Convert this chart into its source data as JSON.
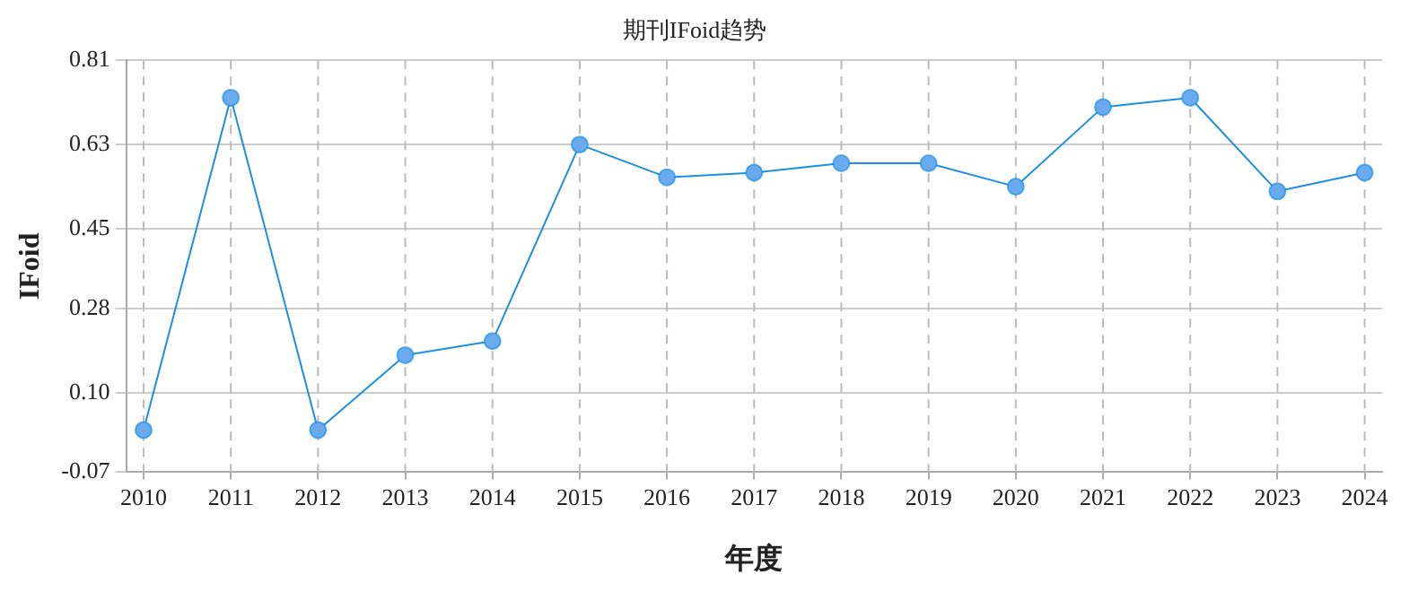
{
  "chart_data": {
    "type": "line",
    "title": "期刊IFoid趋势",
    "xlabel": "年度",
    "ylabel": "IFoid",
    "x": [
      2010,
      2011,
      2012,
      2013,
      2014,
      2015,
      2016,
      2017,
      2018,
      2019,
      2020,
      2021,
      2022,
      2023,
      2024
    ],
    "series": [
      {
        "color": "#1a8fe3",
        "values": [
          0.02,
          0.73,
          0.02,
          0.18,
          0.21,
          0.63,
          0.56,
          0.57,
          0.59,
          0.59,
          0.54,
          0.71,
          0.73,
          0.53,
          0.57
        ]
      }
    ],
    "xlim": [
      2009.8,
      2024.2
    ],
    "xticks": [
      2010,
      2011,
      2012,
      2013,
      2014,
      2015,
      2016,
      2017,
      2018,
      2019,
      2020,
      2021,
      2022,
      2023,
      2024
    ],
    "ylim": [
      -0.07,
      0.81
    ],
    "yticks": [
      {
        "value": -0.07,
        "label": "-0.07"
      },
      {
        "value": 0.1,
        "label": "0.10"
      },
      {
        "value": 0.28,
        "label": "0.28"
      },
      {
        "value": 0.45,
        "label": "0.45"
      },
      {
        "value": 0.63,
        "label": "0.63"
      },
      {
        "value": 0.81,
        "label": "0.81"
      }
    ],
    "grid": true,
    "legend": false,
    "marker": "circle",
    "line_style": "solid"
  }
}
